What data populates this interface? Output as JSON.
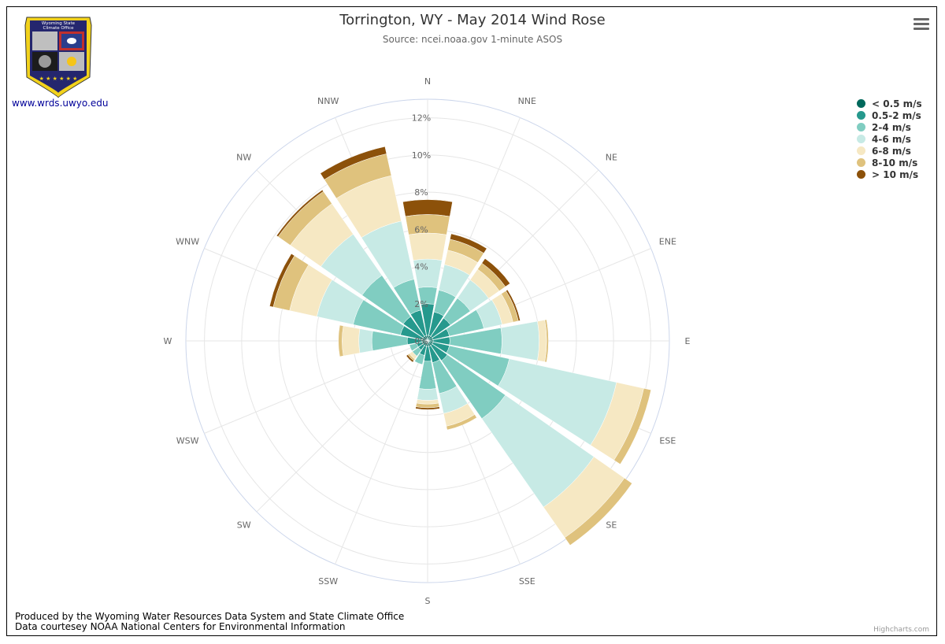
{
  "header": {
    "title": "Torrington, WY - May 2014 Wind Rose",
    "subtitle": "Source: ncei.noaa.gov 1-minute ASOS"
  },
  "logo": {
    "lines": [
      "Wyoming State",
      "Climate Office"
    ],
    "link_text": "www.wrds.uwyo.edu"
  },
  "menu": {
    "icon": "hamburger-menu-icon"
  },
  "footer": {
    "line1": "Produced by the Wyoming Water Resources Data System and State Climate Office",
    "line2": "Data courtesey NOAA National Centers for Environmental Information"
  },
  "credits": "Highcharts.com",
  "chart_data": {
    "type": "windrose",
    "directions": [
      "N",
      "NNE",
      "NE",
      "ENE",
      "E",
      "ESE",
      "SE",
      "SSE",
      "S",
      "SSW",
      "SW",
      "WSW",
      "W",
      "WNW",
      "NW",
      "NNW"
    ],
    "radial_ticks": [
      "0%",
      "2%",
      "4%",
      "6%",
      "8%",
      "10%",
      "12%"
    ],
    "radial_max": 13,
    "legend_placement": "top-right",
    "series": [
      {
        "name": "< 0.5 m/s",
        "color": "#00695c",
        "values": [
          0.3,
          0.3,
          0.3,
          0.3,
          0.3,
          0.3,
          0.3,
          0.3,
          0.3,
          0.3,
          0.3,
          0.3,
          0.3,
          0.3,
          0.3,
          0.3
        ]
      },
      {
        "name": "0.5-2 m/s",
        "color": "#26998d",
        "values": [
          1.7,
          1.3,
          1.2,
          0.9,
          0.9,
          0.9,
          1.0,
          0.9,
          0.8,
          0.5,
          0.3,
          0.3,
          0.8,
          1.2,
          1.3,
          1.4
        ]
      },
      {
        "name": "2-4 m/s",
        "color": "#80cdc1",
        "values": [
          0.9,
          1.2,
          1.3,
          1.9,
          2.8,
          3.3,
          3.8,
          1.7,
          1.5,
          0.5,
          0.4,
          0.4,
          1.9,
          2.6,
          2.7,
          1.7
        ]
      },
      {
        "name": "4-6 m/s",
        "color": "#c7eae5",
        "values": [
          1.5,
          1.4,
          1.2,
          1.0,
          2.0,
          5.9,
          5.8,
          1.1,
          0.6,
          0.0,
          0.0,
          0.0,
          0.7,
          2.0,
          2.7,
          3.2
        ]
      },
      {
        "name": "6-8 m/s",
        "color": "#f6e8c3",
        "values": [
          1.4,
          0.8,
          0.7,
          0.6,
          0.4,
          1.5,
          2.0,
          0.7,
          0.2,
          0.0,
          0.2,
          0.0,
          0.9,
          1.5,
          2.0,
          2.5
        ]
      },
      {
        "name": "8-10 m/s",
        "color": "#dfc27d",
        "values": [
          1.0,
          0.6,
          0.4,
          0.3,
          0.1,
          0.4,
          0.5,
          0.2,
          0.2,
          0.0,
          0.1,
          0.0,
          0.2,
          0.9,
          0.8,
          1.2
        ]
      },
      {
        "name": "> 10 m/s",
        "color": "#8c510a",
        "values": [
          0.8,
          0.3,
          0.3,
          0.1,
          0.0,
          0.0,
          0.0,
          0.0,
          0.1,
          0.0,
          0.1,
          0.0,
          0.0,
          0.2,
          0.1,
          0.4
        ]
      }
    ]
  }
}
